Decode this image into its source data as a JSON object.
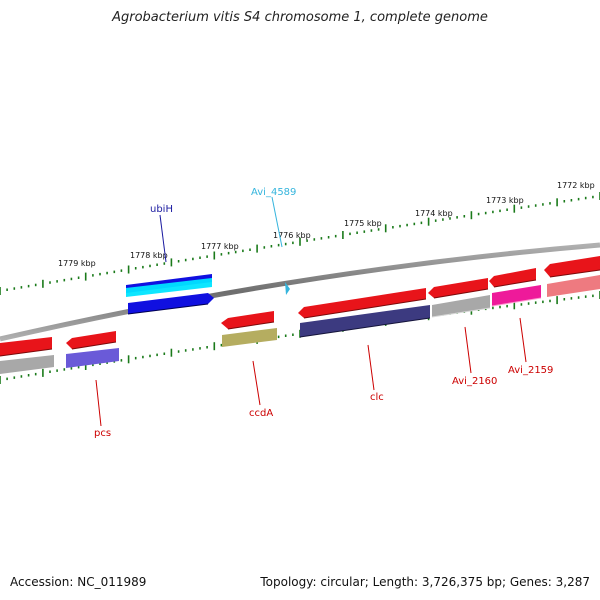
{
  "title": "Agrobacterium vitis S4 chromosome 1, complete genome",
  "footer": {
    "accession": "Accession: NC_011989",
    "summary": "Topology: circular; Length: 3,726,375 bp; Genes: 3,287"
  },
  "scale": {
    "tick_color": "#1a7a1a",
    "tick_labels": [
      "1779 kbp",
      "1778 kbp",
      "1777 kbp",
      "1776 kbp",
      "1775 kbp",
      "1774 kbp",
      "1773 kbp",
      "1772 kbp"
    ]
  },
  "genes": [
    {
      "name": "ubiH",
      "label_color": "#1a1aa0"
    },
    {
      "name": "Avi_4589",
      "label_color": "#35b5dd"
    },
    {
      "name": "pcs",
      "label_color": "#cc0000"
    },
    {
      "name": "ccdA",
      "label_color": "#cc0000"
    },
    {
      "name": "clc",
      "label_color": "#cc0000"
    },
    {
      "name": "Avi_2160",
      "label_color": "#cc0000"
    },
    {
      "name": "Avi_2159",
      "label_color": "#cc0000"
    }
  ],
  "colors": {
    "backbone": "#8a8a8a",
    "gene_red": "#e8141a",
    "blue": "#1010e0",
    "cyan": "#00e5ff",
    "navy": "#3c3a80",
    "violet": "#6a5ad8",
    "olive": "#b5ad60",
    "gray": "#a8a8a8",
    "magenta": "#ee1a9a",
    "pink": "#ee7a80"
  }
}
